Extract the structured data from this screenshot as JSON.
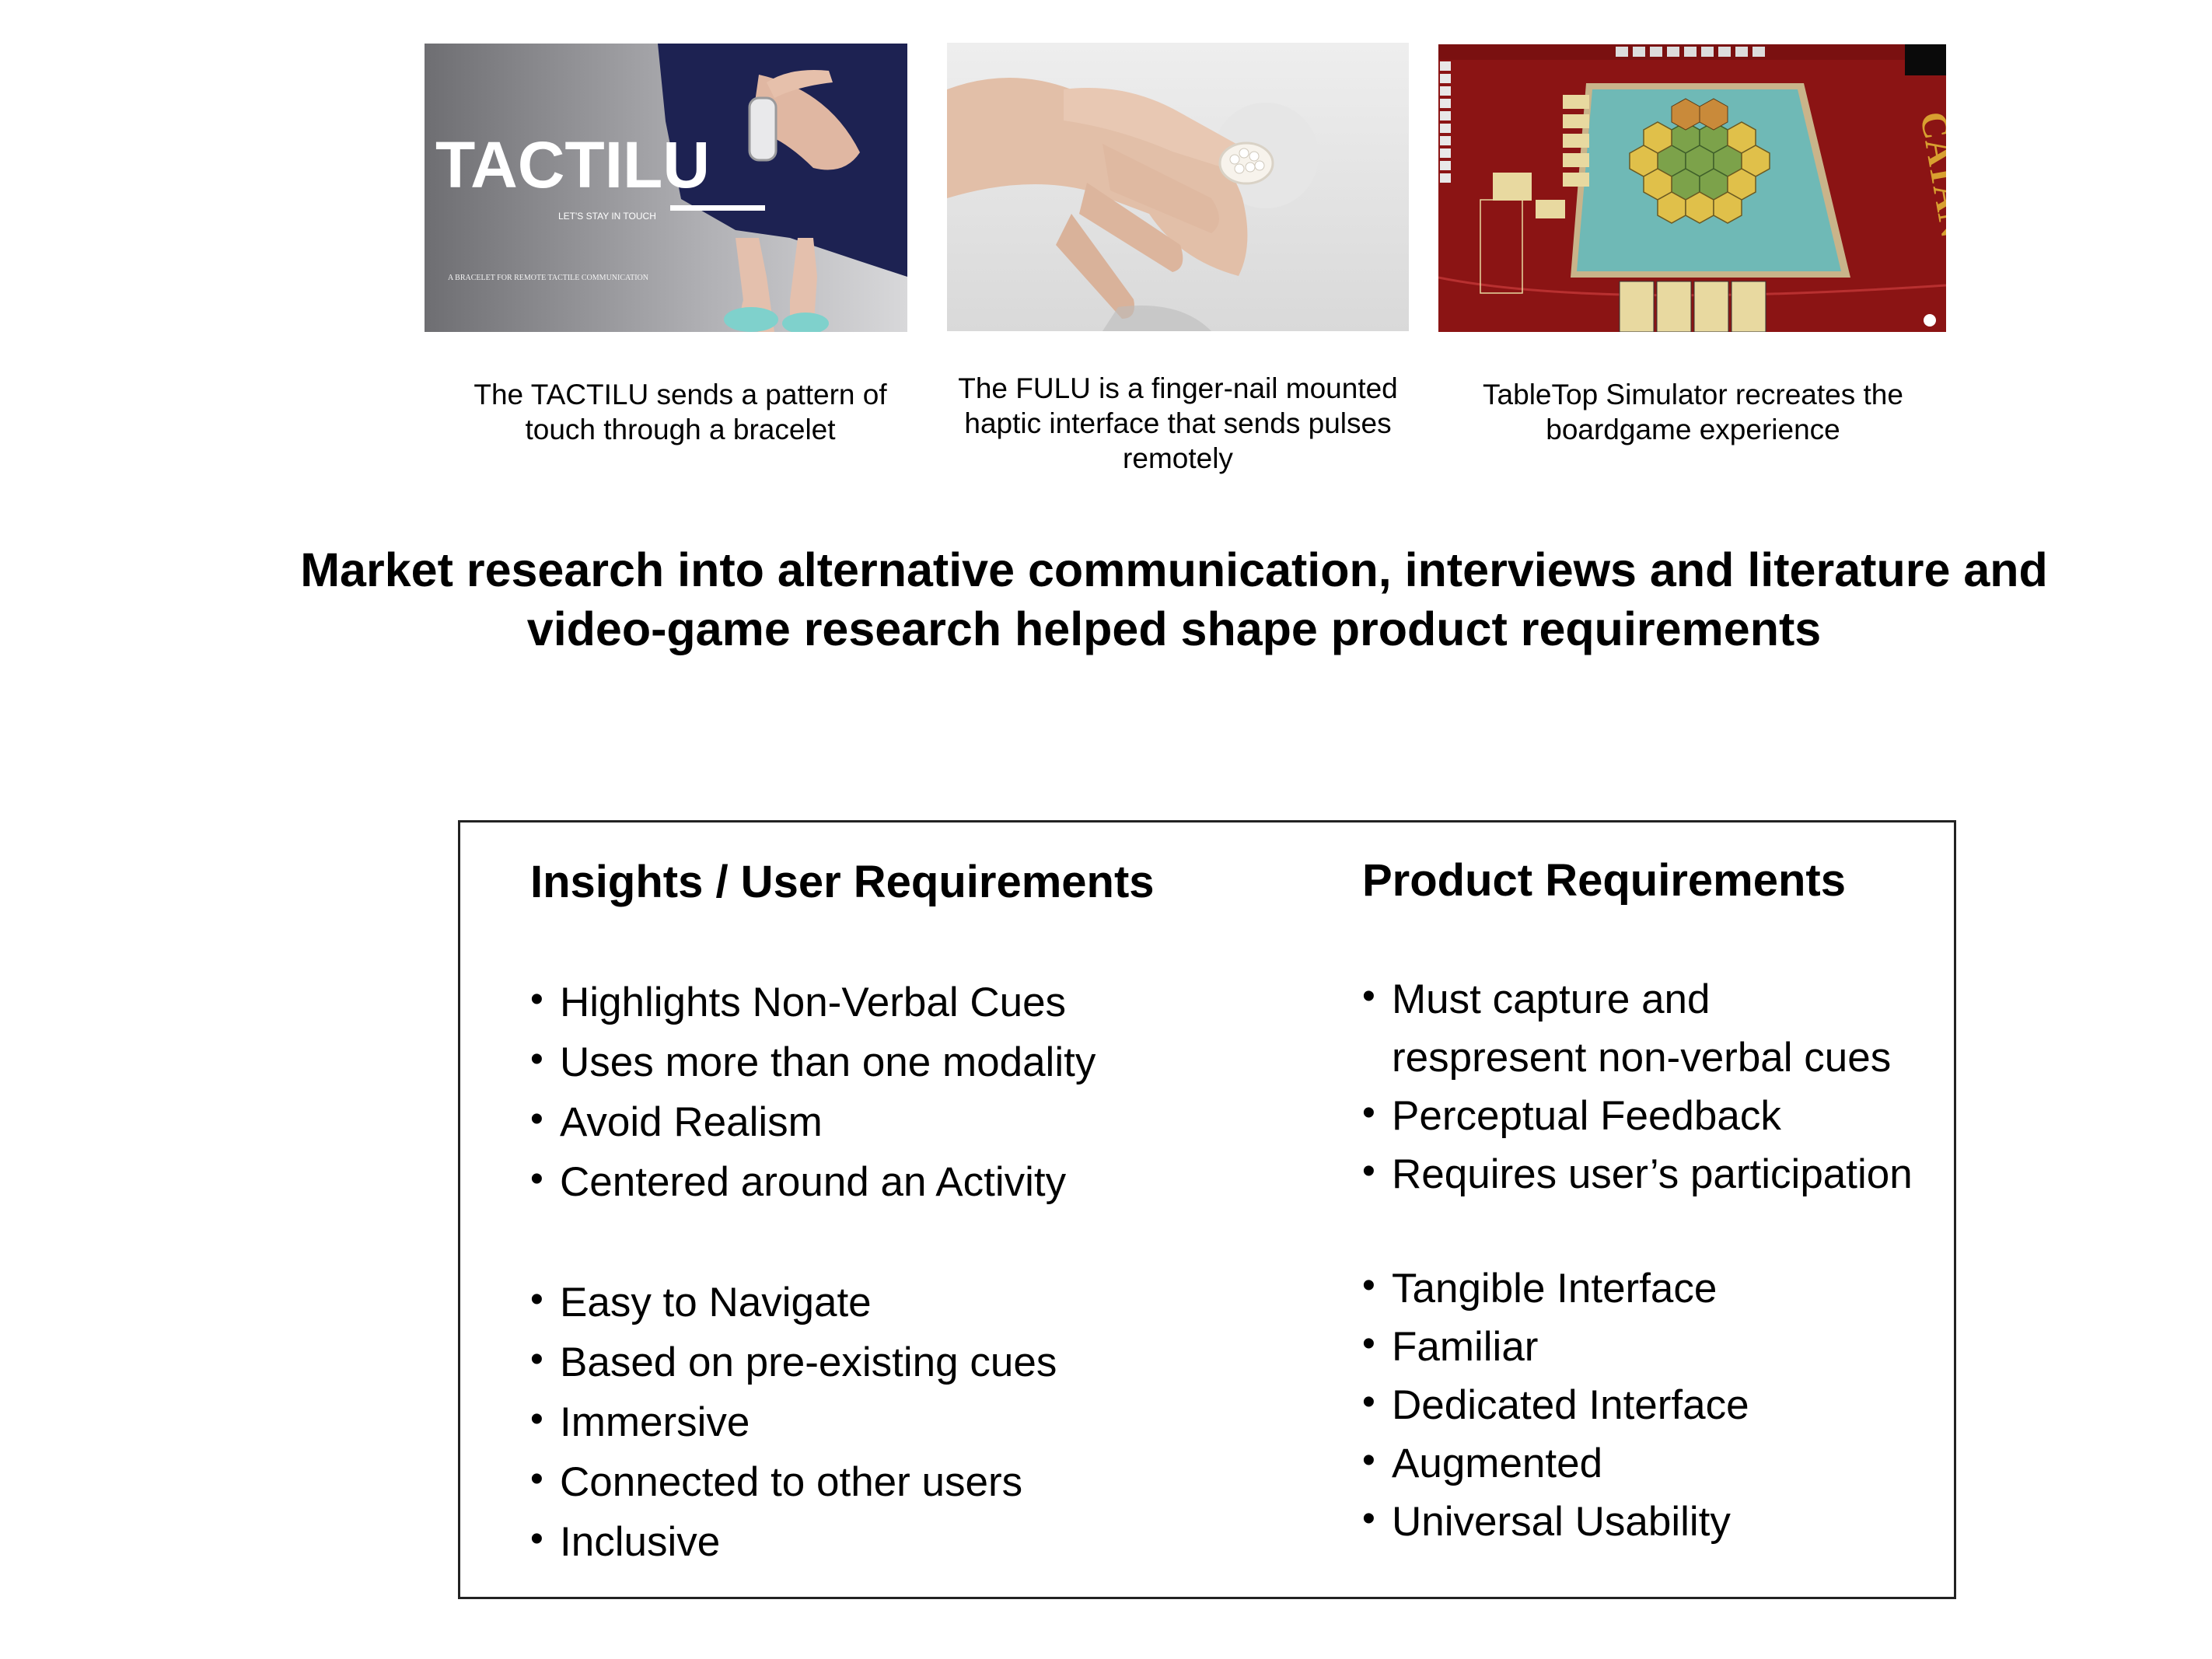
{
  "images": [
    {
      "caption": "The TACTILU sends a pattern of touch through a bracelet",
      "logo_text": "TACTILU",
      "tagline": "LET'S STAY IN TOUCH",
      "subtitle": "A BRACELET FOR REMOTE TACTILE COMMUNICATION",
      "icon": "bracelet-photo"
    },
    {
      "caption": "The FULU is a finger-nail mounted haptic interface that sends pulses remotely",
      "icon": "hand-photo"
    },
    {
      "caption": "TableTop Simulator recreates the boardgame experience",
      "board_text": "CATAN",
      "icon": "boardgame-screenshot"
    }
  ],
  "headline": "Market research into alternative communication, interviews and literature and video-game research helped shape product requirements",
  "insights": {
    "title": "Insights / User Requirements",
    "group1": [
      "Highlights Non-Verbal Cues",
      "Uses more than one modality",
      "Avoid Realism",
      "Centered around an Activity"
    ],
    "group2": [
      "Easy to Navigate",
      "Based on pre-existing cues",
      "Immersive",
      "Connected to other users",
      "Inclusive"
    ]
  },
  "product": {
    "title": "Product Requirements",
    "group1": [
      "Must capture and respresent non-verbal cues",
      "Perceptual Feedback",
      "Requires user’s participation"
    ],
    "group2": [
      "Tangible Interface",
      "Familiar",
      "Dedicated Interface",
      "Augmented",
      "Universal Usability"
    ]
  },
  "colors": {
    "board_red": "#8b1414",
    "water": "#6fb9b6",
    "dress": "#1d2252"
  }
}
